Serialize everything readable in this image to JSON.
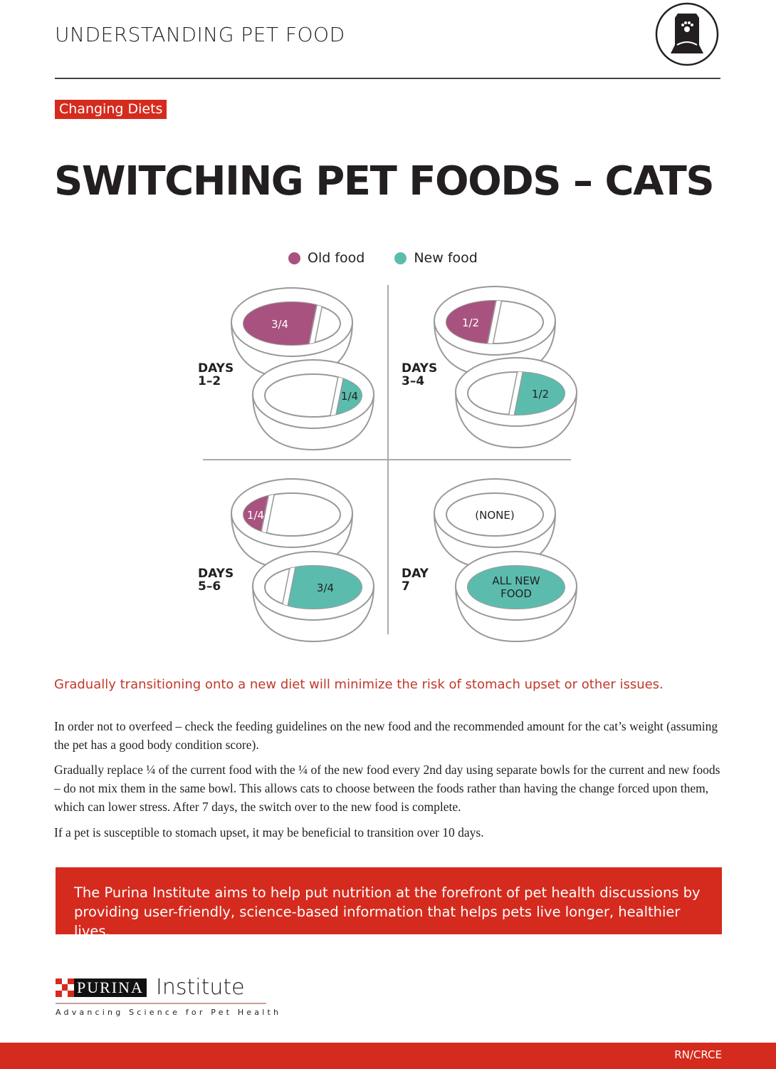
{
  "header": {
    "title": "UNDERSTANDING PET FOOD",
    "icon": "pet-food-bag-icon"
  },
  "tag": "Changing Diets",
  "title": "SWITCHING PET FOODS – CATS",
  "legend": [
    {
      "label": "Old food",
      "color": "#a8527f"
    },
    {
      "label": "New food",
      "color": "#5bbcae"
    }
  ],
  "stages": [
    {
      "label_line1": "DAYS",
      "label_line2": "1–2",
      "old_label": "3/4",
      "new_label": "1/4",
      "old_fraction": 0.75,
      "new_fraction": 0.25
    },
    {
      "label_line1": "DAYS",
      "label_line2": "3–4",
      "old_label": "1/2",
      "new_label": "1/2",
      "old_fraction": 0.5,
      "new_fraction": 0.5
    },
    {
      "label_line1": "DAYS",
      "label_line2": "5–6",
      "old_label": "1/4",
      "new_label": "3/4",
      "old_fraction": 0.25,
      "new_fraction": 0.75
    },
    {
      "label_line1": "DAY",
      "label_line2": "7",
      "old_label": "(NONE)",
      "new_label_line1": "ALL NEW",
      "new_label_line2": "FOOD",
      "old_fraction": 0,
      "new_fraction": 1
    }
  ],
  "lead": "Gradually transitioning onto a new diet will minimize the risk of stomach upset or other issues.",
  "paragraphs": [
    "In order not to overfeed – check the feeding guidelines on the new food and the recommended amount for the cat’s weight (assuming the pet has a good body condition score).",
    "Gradually replace ¼ of the current food with the ¼ of the new food every 2nd day using separate bowls for the current and new foods – do not mix them in the same bowl. This allows cats to choose between the foods rather than having the change forced upon them, which can lower stress. After 7 days, the switch over to the new food is complete.",
    "If a pet is susceptible to stomach upset, it may be beneficial to transition over 10 days."
  ],
  "banner": "The Purina Institute aims to help put nutrition at the forefront of pet health discussions by providing user-friendly, science-based information that helps pets live longer, healthier lives.",
  "logo": {
    "brand": "PURINA",
    "name": "Institute",
    "tagline": "Advancing Science for Pet Health"
  },
  "footer": {
    "code": "RN/CRCE"
  },
  "colors": {
    "accent": "#d52b1e",
    "old_food": "#a8527f",
    "new_food": "#5bbcae"
  }
}
